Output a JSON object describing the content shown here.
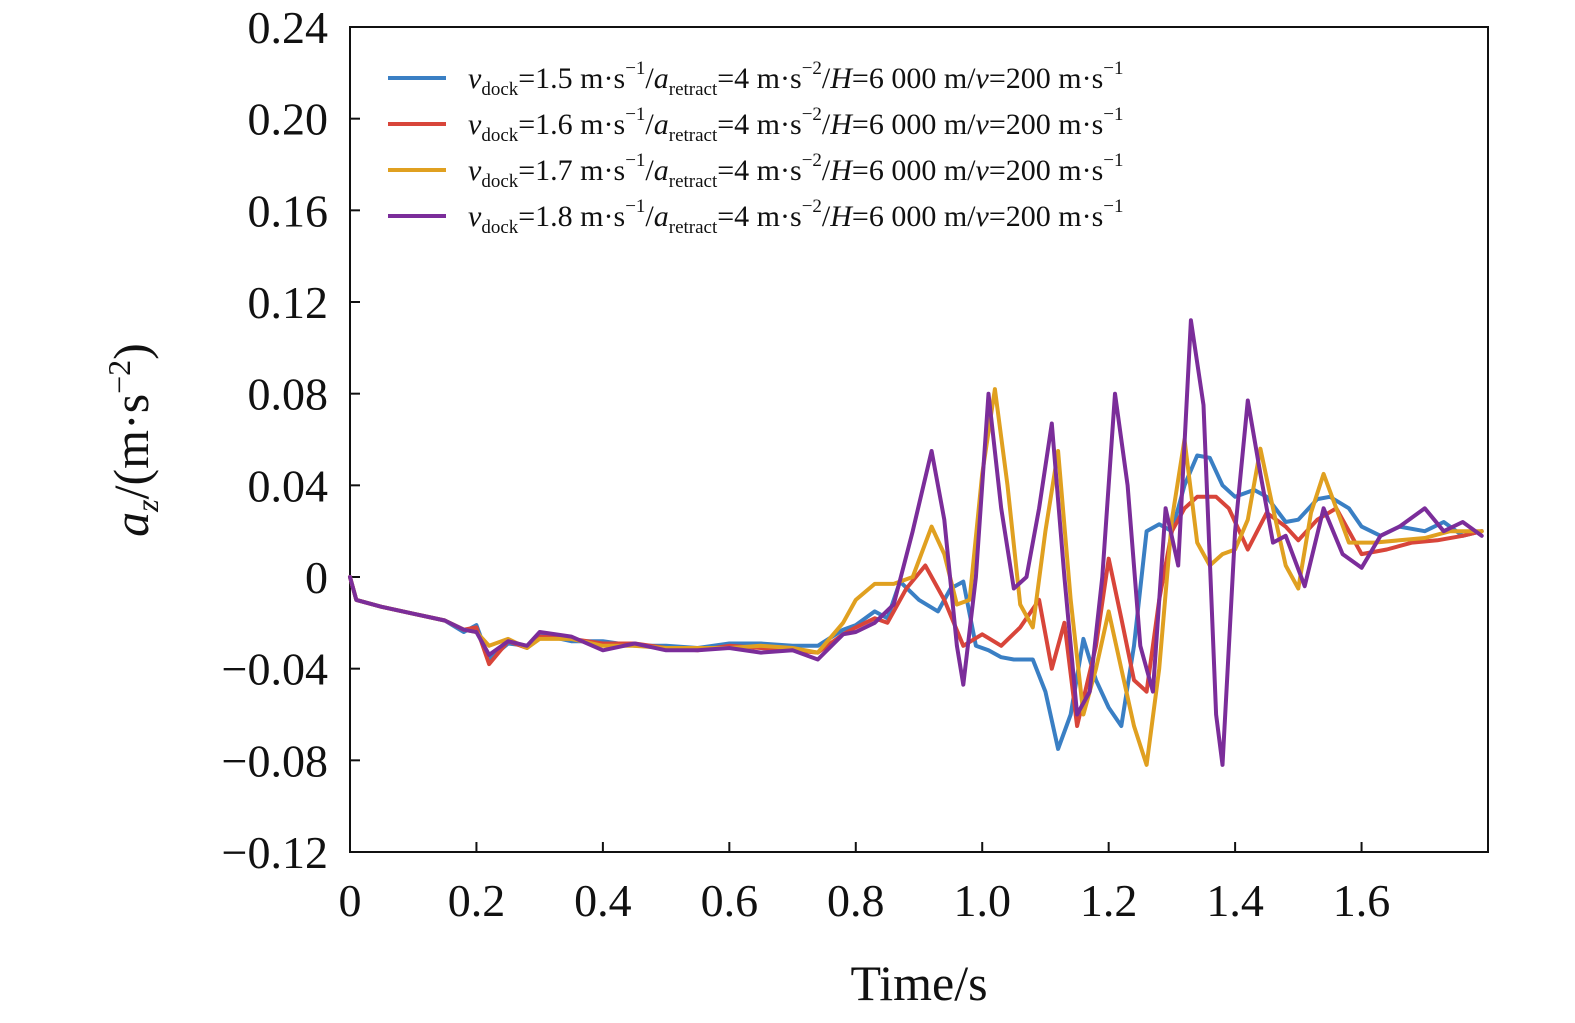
{
  "chart_data": {
    "type": "line",
    "xlabel": "Time/s",
    "ylabel": {
      "pre": "a",
      "sub": "z",
      "post": "/(m·s",
      "sup": "−2",
      "close": ")"
    },
    "xlim": [
      0,
      1.8
    ],
    "ylim": [
      -0.12,
      0.24
    ],
    "x_ticks": [
      0,
      0.2,
      0.4,
      0.6,
      0.8,
      1.0,
      1.2,
      1.4,
      1.6
    ],
    "x_tick_labels": [
      "0",
      "0.2",
      "0.4",
      "0.6",
      "0.8",
      "1.0",
      "1.2",
      "1.4",
      "1.6"
    ],
    "y_ticks": [
      -0.12,
      -0.08,
      -0.04,
      0,
      0.04,
      0.08,
      0.12,
      0.16,
      0.2,
      0.24
    ],
    "y_tick_labels": [
      "−0.12",
      "−0.08",
      "−0.04",
      "0",
      "0.04",
      "0.08",
      "0.12",
      "0.16",
      "0.20",
      "0.24"
    ],
    "grid": false,
    "legend_position": "top-left",
    "series": [
      {
        "label": {
          "v": "v",
          "v_sub": "dock",
          "v_val": "=1.5 m·s",
          "v_sup": "−1",
          "slash1": "/",
          "a": "a",
          "a_sub": "retract",
          "a_val": "=4 m·s",
          "a_sup": "−2",
          "slash2": "/",
          "H": "H",
          "H_val": "=6 000 m/",
          "v2": "v",
          "v2_val": "=200 m·s",
          "v2_sup": "−1"
        },
        "color": "#3a7fc4",
        "x": [
          0,
          0.01,
          0.05,
          0.1,
          0.15,
          0.18,
          0.2,
          0.22,
          0.25,
          0.28,
          0.3,
          0.35,
          0.4,
          0.45,
          0.5,
          0.55,
          0.6,
          0.65,
          0.7,
          0.74,
          0.78,
          0.8,
          0.83,
          0.85,
          0.87,
          0.9,
          0.93,
          0.95,
          0.97,
          0.99,
          1.01,
          1.03,
          1.05,
          1.08,
          1.1,
          1.12,
          1.14,
          1.16,
          1.18,
          1.2,
          1.22,
          1.24,
          1.26,
          1.28,
          1.3,
          1.32,
          1.34,
          1.36,
          1.38,
          1.4,
          1.43,
          1.45,
          1.48,
          1.5,
          1.53,
          1.55,
          1.58,
          1.6,
          1.63,
          1.66,
          1.7,
          1.73,
          1.76,
          1.79
        ],
        "values": [
          0,
          -0.01,
          -0.013,
          -0.016,
          -0.019,
          -0.024,
          -0.021,
          -0.036,
          -0.029,
          -0.03,
          -0.025,
          -0.028,
          -0.028,
          -0.03,
          -0.03,
          -0.031,
          -0.029,
          -0.029,
          -0.03,
          -0.03,
          -0.023,
          -0.021,
          -0.015,
          -0.018,
          -0.002,
          -0.01,
          -0.015,
          -0.005,
          -0.002,
          -0.03,
          -0.032,
          -0.035,
          -0.036,
          -0.036,
          -0.05,
          -0.075,
          -0.06,
          -0.027,
          -0.045,
          -0.057,
          -0.065,
          -0.03,
          0.02,
          0.023,
          0.02,
          0.04,
          0.053,
          0.052,
          0.04,
          0.035,
          0.038,
          0.035,
          0.024,
          0.025,
          0.034,
          0.035,
          0.03,
          0.022,
          0.018,
          0.022,
          0.02,
          0.024,
          0.018,
          0.02
        ]
      },
      {
        "label": {
          "v": "v",
          "v_sub": "dock",
          "v_val": "=1.6 m·s",
          "v_sup": "−1",
          "slash1": "/",
          "a": "a",
          "a_sub": "retract",
          "a_val": "=4 m·s",
          "a_sup": "−2",
          "slash2": "/",
          "H": "H",
          "H_val": "=6 000 m/",
          "v2": "v",
          "v2_val": "=200 m·s",
          "v2_sup": "−1"
        },
        "color": "#d8453a",
        "x": [
          0,
          0.01,
          0.05,
          0.1,
          0.15,
          0.18,
          0.2,
          0.22,
          0.25,
          0.28,
          0.3,
          0.35,
          0.4,
          0.45,
          0.5,
          0.55,
          0.6,
          0.65,
          0.7,
          0.74,
          0.78,
          0.8,
          0.83,
          0.85,
          0.88,
          0.91,
          0.94,
          0.97,
          1.0,
          1.03,
          1.06,
          1.09,
          1.11,
          1.13,
          1.15,
          1.18,
          1.2,
          1.22,
          1.24,
          1.26,
          1.28,
          1.3,
          1.32,
          1.34,
          1.37,
          1.39,
          1.42,
          1.45,
          1.48,
          1.5,
          1.53,
          1.56,
          1.6,
          1.64,
          1.68,
          1.72,
          1.76,
          1.79
        ],
        "values": [
          0,
          -0.01,
          -0.013,
          -0.016,
          -0.019,
          -0.023,
          -0.022,
          -0.038,
          -0.028,
          -0.031,
          -0.026,
          -0.027,
          -0.029,
          -0.029,
          -0.031,
          -0.032,
          -0.03,
          -0.031,
          -0.032,
          -0.033,
          -0.025,
          -0.022,
          -0.018,
          -0.02,
          -0.005,
          0.005,
          -0.01,
          -0.03,
          -0.025,
          -0.03,
          -0.022,
          -0.01,
          -0.04,
          -0.02,
          -0.065,
          -0.03,
          0.008,
          -0.018,
          -0.045,
          -0.05,
          -0.01,
          0.02,
          0.03,
          0.035,
          0.035,
          0.03,
          0.012,
          0.028,
          0.022,
          0.016,
          0.025,
          0.03,
          0.01,
          0.012,
          0.015,
          0.016,
          0.018,
          0.02
        ]
      },
      {
        "label": {
          "v": "v",
          "v_sub": "dock",
          "v_val": "=1.7 m·s",
          "v_sup": "−1",
          "slash1": "/",
          "a": "a",
          "a_sub": "retract",
          "a_val": "=4 m·s",
          "a_sup": "−2",
          "slash2": "/",
          "H": "H",
          "H_val": "=6 000 m/",
          "v2": "v",
          "v2_val": "=200 m·s",
          "v2_sup": "−1"
        },
        "color": "#e0a020",
        "x": [
          0,
          0.01,
          0.05,
          0.1,
          0.15,
          0.18,
          0.2,
          0.22,
          0.25,
          0.28,
          0.3,
          0.35,
          0.4,
          0.45,
          0.5,
          0.55,
          0.6,
          0.65,
          0.7,
          0.74,
          0.78,
          0.8,
          0.83,
          0.86,
          0.89,
          0.92,
          0.94,
          0.96,
          0.98,
          1.0,
          1.02,
          1.04,
          1.06,
          1.08,
          1.1,
          1.12,
          1.14,
          1.16,
          1.18,
          1.2,
          1.22,
          1.24,
          1.26,
          1.28,
          1.3,
          1.32,
          1.34,
          1.36,
          1.38,
          1.4,
          1.42,
          1.44,
          1.46,
          1.48,
          1.5,
          1.52,
          1.54,
          1.56,
          1.58,
          1.62,
          1.66,
          1.7,
          1.74,
          1.79
        ],
        "values": [
          0,
          -0.01,
          -0.013,
          -0.016,
          -0.019,
          -0.023,
          -0.024,
          -0.03,
          -0.027,
          -0.031,
          -0.027,
          -0.027,
          -0.03,
          -0.03,
          -0.031,
          -0.031,
          -0.031,
          -0.03,
          -0.031,
          -0.033,
          -0.02,
          -0.01,
          -0.003,
          -0.003,
          0.0,
          0.022,
          0.01,
          -0.012,
          -0.01,
          0.045,
          0.082,
          0.04,
          -0.012,
          -0.022,
          0.02,
          0.055,
          -0.01,
          -0.06,
          -0.04,
          -0.015,
          -0.04,
          -0.065,
          -0.082,
          -0.04,
          0.025,
          0.06,
          0.015,
          0.005,
          0.01,
          0.012,
          0.025,
          0.056,
          0.03,
          0.005,
          -0.005,
          0.028,
          0.045,
          0.03,
          0.015,
          0.015,
          0.016,
          0.017,
          0.02,
          0.02
        ]
      },
      {
        "label": {
          "v": "v",
          "v_sub": "dock",
          "v_val": "=1.8 m·s",
          "v_sup": "−1",
          "slash1": "/",
          "a": "a",
          "a_sub": "retract",
          "a_val": "=4 m·s",
          "a_sup": "−2",
          "slash2": "/",
          "H": "H",
          "H_val": "=6 000 m/",
          "v2": "v",
          "v2_val": "=200 m·s",
          "v2_sup": "−1"
        },
        "color": "#7b2d9a",
        "x": [
          0,
          0.01,
          0.05,
          0.1,
          0.15,
          0.18,
          0.2,
          0.22,
          0.25,
          0.28,
          0.3,
          0.35,
          0.4,
          0.45,
          0.5,
          0.55,
          0.6,
          0.65,
          0.7,
          0.74,
          0.78,
          0.8,
          0.83,
          0.86,
          0.89,
          0.92,
          0.94,
          0.96,
          0.97,
          0.99,
          1.01,
          1.03,
          1.05,
          1.07,
          1.09,
          1.11,
          1.13,
          1.15,
          1.17,
          1.19,
          1.21,
          1.23,
          1.25,
          1.27,
          1.29,
          1.31,
          1.33,
          1.35,
          1.37,
          1.38,
          1.4,
          1.42,
          1.44,
          1.46,
          1.48,
          1.51,
          1.54,
          1.57,
          1.6,
          1.63,
          1.66,
          1.7,
          1.73,
          1.76,
          1.79
        ],
        "values": [
          0,
          -0.01,
          -0.013,
          -0.016,
          -0.019,
          -0.023,
          -0.024,
          -0.034,
          -0.028,
          -0.03,
          -0.024,
          -0.026,
          -0.032,
          -0.029,
          -0.032,
          -0.032,
          -0.031,
          -0.033,
          -0.032,
          -0.036,
          -0.025,
          -0.024,
          -0.02,
          -0.012,
          0.02,
          0.055,
          0.025,
          -0.03,
          -0.047,
          0.0,
          0.08,
          0.03,
          -0.005,
          0.0,
          0.03,
          0.067,
          0.0,
          -0.06,
          -0.05,
          0.0,
          0.08,
          0.04,
          -0.03,
          -0.05,
          0.03,
          0.005,
          0.112,
          0.075,
          -0.06,
          -0.082,
          0.02,
          0.077,
          0.045,
          0.015,
          0.018,
          -0.004,
          0.03,
          0.01,
          0.004,
          0.018,
          0.022,
          0.03,
          0.02,
          0.024,
          0.018
        ]
      }
    ]
  }
}
